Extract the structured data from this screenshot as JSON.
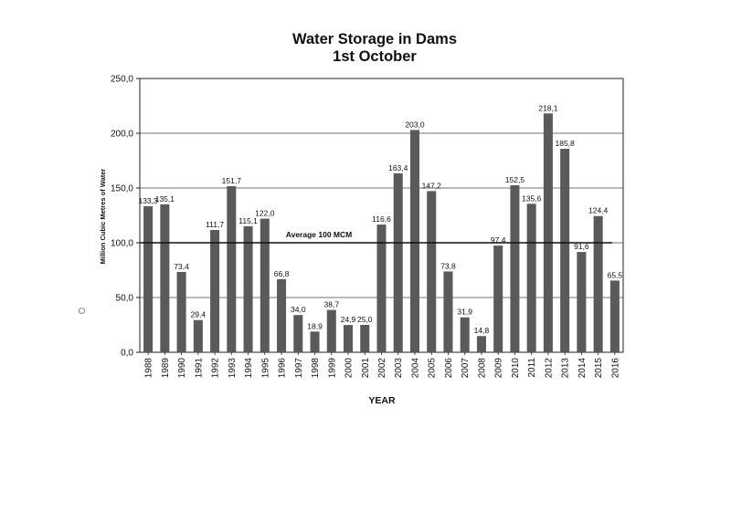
{
  "chart_data": {
    "type": "bar",
    "title": "Water Storage in Dams",
    "subtitle": "1st October",
    "xlabel": "YEAR",
    "ylabel": "Million Cubic Metres of Water",
    "ylim": [
      0,
      250
    ],
    "yticks": [
      "0,0",
      "50,0",
      "100,0",
      "150,0",
      "200,0",
      "250,0"
    ],
    "grid": true,
    "categories": [
      "1988",
      "1989",
      "1990",
      "1991",
      "1992",
      "1993",
      "1994",
      "1995",
      "1996",
      "1997",
      "1998",
      "1999",
      "2000",
      "2001",
      "2002",
      "2003",
      "2004",
      "2005",
      "2006",
      "2007",
      "2008",
      "2009",
      "2010",
      "2011",
      "2012",
      "2013",
      "2014",
      "2015",
      "2016"
    ],
    "values": [
      133.3,
      135.1,
      73.4,
      29.4,
      111.7,
      151.7,
      115.1,
      122.0,
      66.8,
      34.0,
      18.9,
      38.7,
      24.9,
      25.0,
      116.6,
      163.4,
      203.0,
      147.2,
      73.8,
      31.9,
      14.8,
      97.4,
      152.5,
      135.6,
      218.1,
      185.8,
      91.6,
      124.4,
      65.5
    ],
    "value_labels": [
      "133,3",
      "135,1",
      "73,4",
      "29,4",
      "111,7",
      "151,7",
      "115,1",
      "122,0",
      "66,8",
      "34,0",
      "18,9",
      "38,7",
      "24,9",
      "25,0",
      "116,6",
      "163,4",
      "203,0",
      "147,2",
      "73,8",
      "31,9",
      "14,8",
      "97,4",
      "152,5",
      "135,6",
      "218,1",
      "185,8",
      "91,6",
      "124,4",
      "65,5"
    ],
    "reference_line": {
      "value": 100,
      "label": "Average 100 MCM"
    },
    "colors": {
      "bar": "#5a5a5a",
      "background": "#ffffff",
      "grid": "#444444"
    }
  }
}
